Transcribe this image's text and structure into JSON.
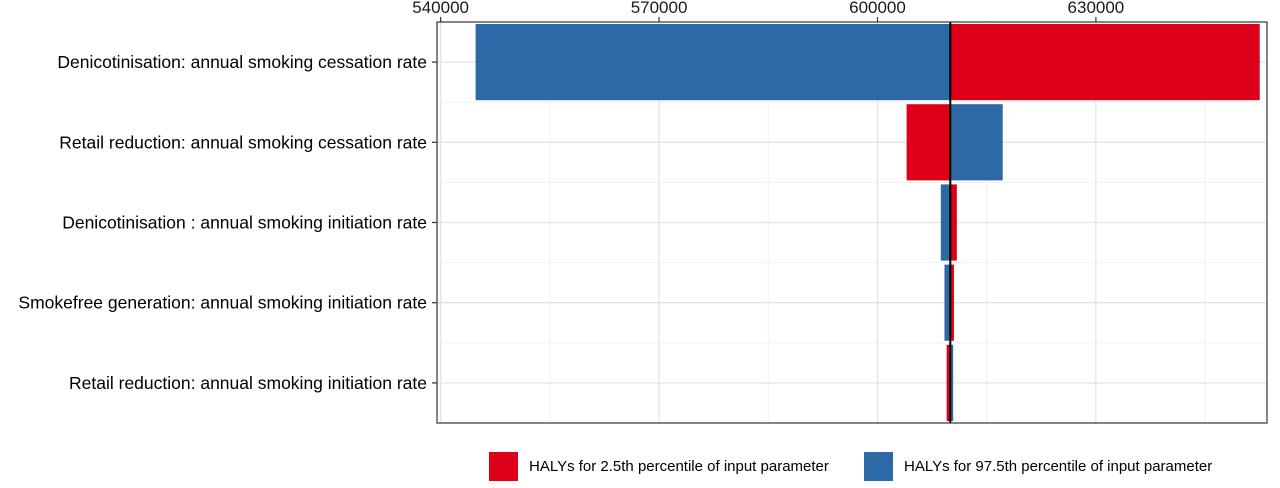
{
  "chart_data": {
    "type": "bar",
    "orientation": "horizontal",
    "subtype": "tornado",
    "baseline": 610000,
    "xlim": [
      539500,
      653500
    ],
    "xticks": [
      540000,
      570000,
      600000,
      630000
    ],
    "xtick_labels": [
      "540000",
      "570000",
      "600000",
      "630000"
    ],
    "axis_position": "top",
    "grid": true,
    "legend_position": "bottom",
    "categories": [
      "Denicotinisation: annual smoking cessation rate",
      "Retail reduction: annual smoking cessation rate",
      "Denicotinisation : annual smoking initiation rate",
      "Smokefree generation: annual smoking initiation rate",
      "Retail reduction: annual smoking initiation rate"
    ],
    "series": [
      {
        "name": "HALYs for 2.5th percentile of input parameter",
        "color": "#dd0018",
        "values": [
          652500,
          604000,
          610900,
          610500,
          609500
        ]
      },
      {
        "name": "HALYs for 97.5th percentile of input parameter",
        "color": "#2d69a7",
        "values": [
          544800,
          617200,
          608700,
          609200,
          610400
        ]
      }
    ]
  },
  "legend": {
    "items": [
      {
        "label": "HALYs for 2.5th percentile of input parameter",
        "color": "#dd0018"
      },
      {
        "label": "HALYs for 97.5th percentile of input parameter",
        "color": "#2d69a7"
      }
    ]
  }
}
